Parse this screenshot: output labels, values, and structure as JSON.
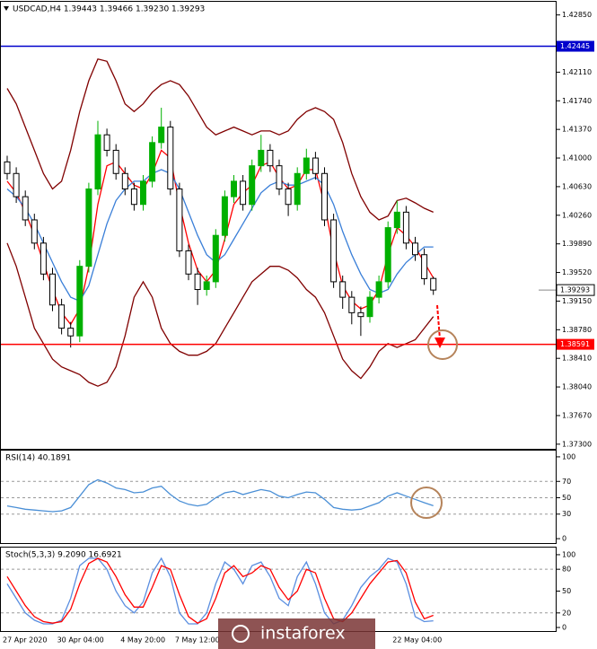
{
  "chart_data": [
    {
      "type": "candlestick",
      "title": "USDCAD,H4  1.39443 1.39466 1.39230 1.39293",
      "categories": [
        "27 Apr 2020",
        null,
        null,
        null,
        null,
        null,
        "30 Apr 04:00",
        null,
        null,
        null,
        null,
        null,
        null,
        "4 May 20:00",
        null,
        null,
        null,
        null,
        null,
        "7 May 12:00",
        null,
        null,
        null,
        null,
        null,
        null,
        null,
        null,
        null,
        null,
        null,
        null,
        null,
        null,
        null,
        null,
        null,
        null,
        null,
        null,
        null,
        null,
        null,
        "22 May 04:00",
        null,
        null,
        null,
        null
      ],
      "open": [
        1.4095,
        1.408,
        1.405,
        1.402,
        1.399,
        1.395,
        1.391,
        1.388,
        1.387,
        1.396,
        1.406,
        1.413,
        1.411,
        1.408,
        1.406,
        1.404,
        1.407,
        1.412,
        1.414,
        1.406,
        1.398,
        1.395,
        1.393,
        1.394,
        1.4,
        1.405,
        1.407,
        1.404,
        1.409,
        1.411,
        1.409,
        1.406,
        1.404,
        1.408,
        1.41,
        1.408,
        1.402,
        1.394,
        1.392,
        1.39,
        1.3895,
        1.392,
        1.394,
        1.401,
        1.403,
        1.399,
        1.3975,
        1.39443
      ],
      "high": [
        1.4103,
        1.4088,
        1.4058,
        1.4028,
        1.3998,
        1.3958,
        1.3918,
        1.3888,
        1.3968,
        1.4068,
        1.4148,
        1.4138,
        1.4118,
        1.4088,
        1.4068,
        1.4078,
        1.4128,
        1.4165,
        1.4148,
        1.4068,
        1.3988,
        1.3958,
        1.3948,
        1.4008,
        1.4058,
        1.4078,
        1.4078,
        1.4098,
        1.413,
        1.4118,
        1.4098,
        1.4068,
        1.4088,
        1.4112,
        1.4108,
        1.4088,
        1.4028,
        1.3948,
        1.3928,
        1.3908,
        1.3928,
        1.3948,
        1.4018,
        1.4045,
        1.4038,
        1.3998,
        1.3983,
        1.39466
      ],
      "low": [
        1.4072,
        1.4042,
        1.4012,
        1.3982,
        1.3942,
        1.3902,
        1.3872,
        1.3855,
        1.3862,
        1.3952,
        1.4052,
        1.4102,
        1.4072,
        1.4052,
        1.4032,
        1.4032,
        1.4062,
        1.4112,
        1.4052,
        1.3972,
        1.3942,
        1.391,
        1.3922,
        1.3932,
        1.3992,
        1.4042,
        1.4032,
        1.4032,
        1.4082,
        1.4082,
        1.4052,
        1.4025,
        1.4032,
        1.4072,
        1.4072,
        1.4012,
        1.3932,
        1.3905,
        1.3885,
        1.387,
        1.3887,
        1.3912,
        1.3932,
        1.4002,
        1.3982,
        1.3967,
        1.3936,
        1.3923
      ],
      "close": [
        1.408,
        1.405,
        1.402,
        1.399,
        1.395,
        1.391,
        1.388,
        1.387,
        1.396,
        1.406,
        1.413,
        1.411,
        1.408,
        1.406,
        1.404,
        1.407,
        1.412,
        1.414,
        1.406,
        1.398,
        1.395,
        1.393,
        1.394,
        1.4,
        1.405,
        1.407,
        1.404,
        1.409,
        1.411,
        1.409,
        1.406,
        1.404,
        1.408,
        1.41,
        1.408,
        1.402,
        1.394,
        1.392,
        1.39,
        1.3895,
        1.392,
        1.394,
        1.401,
        1.403,
        1.399,
        1.3975,
        1.3944,
        1.39293
      ],
      "up_color": "#00b000",
      "down_color": "#000000",
      "series": [
        {
          "color": "#800000",
          "values": [
            1.419,
            1.417,
            1.414,
            1.411,
            1.408,
            1.406,
            1.407,
            1.411,
            1.416,
            1.42,
            1.4228,
            1.4225,
            1.42,
            1.417,
            1.416,
            1.417,
            1.4185,
            1.4195,
            1.42,
            1.4195,
            1.418,
            1.416,
            1.414,
            1.413,
            1.4135,
            1.414,
            1.4135,
            1.413,
            1.4135,
            1.4135,
            1.413,
            1.4135,
            1.415,
            1.416,
            1.4165,
            1.416,
            1.415,
            1.412,
            1.408,
            1.405,
            1.403,
            1.402,
            1.4025,
            1.4045,
            1.4048,
            1.4042,
            1.4035,
            1.403
          ]
        },
        {
          "color": "#800000",
          "values": [
            1.399,
            1.396,
            1.392,
            1.388,
            1.386,
            1.384,
            1.383,
            1.3825,
            1.382,
            1.381,
            1.3805,
            1.381,
            1.383,
            1.387,
            1.392,
            1.394,
            1.392,
            1.388,
            1.386,
            1.385,
            1.3845,
            1.3845,
            1.385,
            1.386,
            1.388,
            1.39,
            1.392,
            1.394,
            1.395,
            1.396,
            1.396,
            1.3955,
            1.3945,
            1.393,
            1.392,
            1.39,
            1.387,
            1.384,
            1.3825,
            1.3815,
            1.383,
            1.385,
            1.386,
            1.3855,
            1.386,
            1.3865,
            1.388,
            1.3895
          ]
        },
        {
          "color": "#ff0000",
          "values": [
            1.407,
            1.4055,
            1.403,
            1.4,
            1.3965,
            1.393,
            1.39,
            1.3885,
            1.3905,
            1.396,
            1.404,
            1.409,
            1.4095,
            1.408,
            1.4065,
            1.406,
            1.408,
            1.411,
            1.41,
            1.404,
            1.399,
            1.3955,
            1.394,
            1.3955,
            1.3995,
            1.404,
            1.4055,
            1.4065,
            1.409,
            1.4095,
            1.4075,
            1.406,
            1.4065,
            1.4085,
            1.4085,
            1.404,
            1.398,
            1.3935,
            1.3915,
            1.3905,
            1.391,
            1.393,
            1.3975,
            1.401,
            1.4,
            1.3985,
            1.3965,
            1.3945
          ]
        },
        {
          "color": "#3a7fd8",
          "values": [
            1.406,
            1.405,
            1.4035,
            1.4015,
            1.399,
            1.3965,
            1.394,
            1.392,
            1.3915,
            1.3935,
            1.3975,
            1.4015,
            1.4045,
            1.406,
            1.407,
            1.407,
            1.408,
            1.4085,
            1.408,
            1.406,
            1.403,
            1.4,
            1.3975,
            1.3965,
            1.3975,
            1.3995,
            1.4015,
            1.4035,
            1.4055,
            1.4065,
            1.407,
            1.4065,
            1.4065,
            1.407,
            1.4075,
            1.4065,
            1.404,
            1.4005,
            1.3975,
            1.395,
            1.393,
            1.3925,
            1.393,
            1.395,
            1.3965,
            1.3975,
            1.3985,
            1.3985
          ]
        }
      ],
      "hlines": [
        {
          "value": 1.42445,
          "color": "#0000cc"
        },
        {
          "value": 1.38591,
          "color": "#ff0000"
        }
      ],
      "ylim": [
        1.3724,
        1.4302
      ],
      "yticks": [
        {
          "value": 1.4285,
          "label": "1.42850"
        },
        {
          "value": 1.4211,
          "label": "1.42110"
        },
        {
          "value": 1.4174,
          "label": "1.41740"
        },
        {
          "value": 1.4137,
          "label": "1.41370"
        },
        {
          "value": 1.41,
          "label": "1.41000"
        },
        {
          "value": 1.4063,
          "label": "1.40630"
        },
        {
          "value": 1.4026,
          "label": "1.40260"
        },
        {
          "value": 1.3989,
          "label": "1.39890"
        },
        {
          "value": 1.3952,
          "label": "1.39520"
        },
        {
          "value": 1.3915,
          "label": "1.39150"
        },
        {
          "value": 1.3878,
          "label": "1.38780"
        },
        {
          "value": 1.3841,
          "label": "1.38410"
        },
        {
          "value": 1.3804,
          "label": "1.38040"
        },
        {
          "value": 1.3767,
          "label": "1.37670"
        },
        {
          "value": 1.373,
          "label": "1.37300"
        }
      ]
    },
    {
      "type": "line",
      "title": "RSI(14) 40.1891",
      "series": [
        {
          "color": "#4a8fd6",
          "values": [
            40,
            38,
            36,
            35,
            34,
            33,
            34,
            38,
            52,
            66,
            72,
            68,
            62,
            60,
            56,
            57,
            62,
            64,
            54,
            46,
            42,
            40,
            42,
            50,
            56,
            58,
            54,
            57,
            60,
            58,
            52,
            50,
            54,
            57,
            56,
            48,
            38,
            36,
            35,
            36,
            40,
            44,
            52,
            56,
            52,
            48,
            44,
            40.1891
          ]
        }
      ],
      "levels": [
        70,
        50,
        30
      ],
      "ylim": [
        -6.5,
        107.6
      ],
      "yticks": [
        100,
        70,
        50,
        30,
        0
      ]
    },
    {
      "type": "line",
      "title": "Stoch(5,3,3) 9.2090 16.6921",
      "series": [
        {
          "color": "#5a8ee0",
          "values": [
            60,
            40,
            20,
            10,
            5,
            5,
            10,
            40,
            85,
            95,
            95,
            80,
            50,
            30,
            20,
            35,
            75,
            95,
            70,
            20,
            5,
            5,
            20,
            60,
            90,
            80,
            60,
            85,
            90,
            70,
            40,
            30,
            70,
            90,
            60,
            20,
            5,
            10,
            30,
            55,
            70,
            80,
            95,
            90,
            60,
            15,
            8,
            9.209
          ]
        },
        {
          "color": "#ff0000",
          "values": [
            70,
            50,
            30,
            15,
            8,
            6,
            8,
            25,
            60,
            88,
            95,
            90,
            70,
            45,
            28,
            28,
            55,
            85,
            80,
            45,
            15,
            6,
            12,
            40,
            75,
            85,
            70,
            75,
            85,
            80,
            55,
            38,
            50,
            80,
            75,
            40,
            12,
            8,
            20,
            40,
            60,
            75,
            90,
            92,
            75,
            35,
            12,
            16.6921
          ]
        }
      ],
      "levels": [
        80,
        20
      ],
      "ylim": [
        -4.9,
        109.8
      ],
      "yticks": [
        100,
        80,
        50,
        20,
        0
      ]
    }
  ],
  "watermark": "instaforex"
}
